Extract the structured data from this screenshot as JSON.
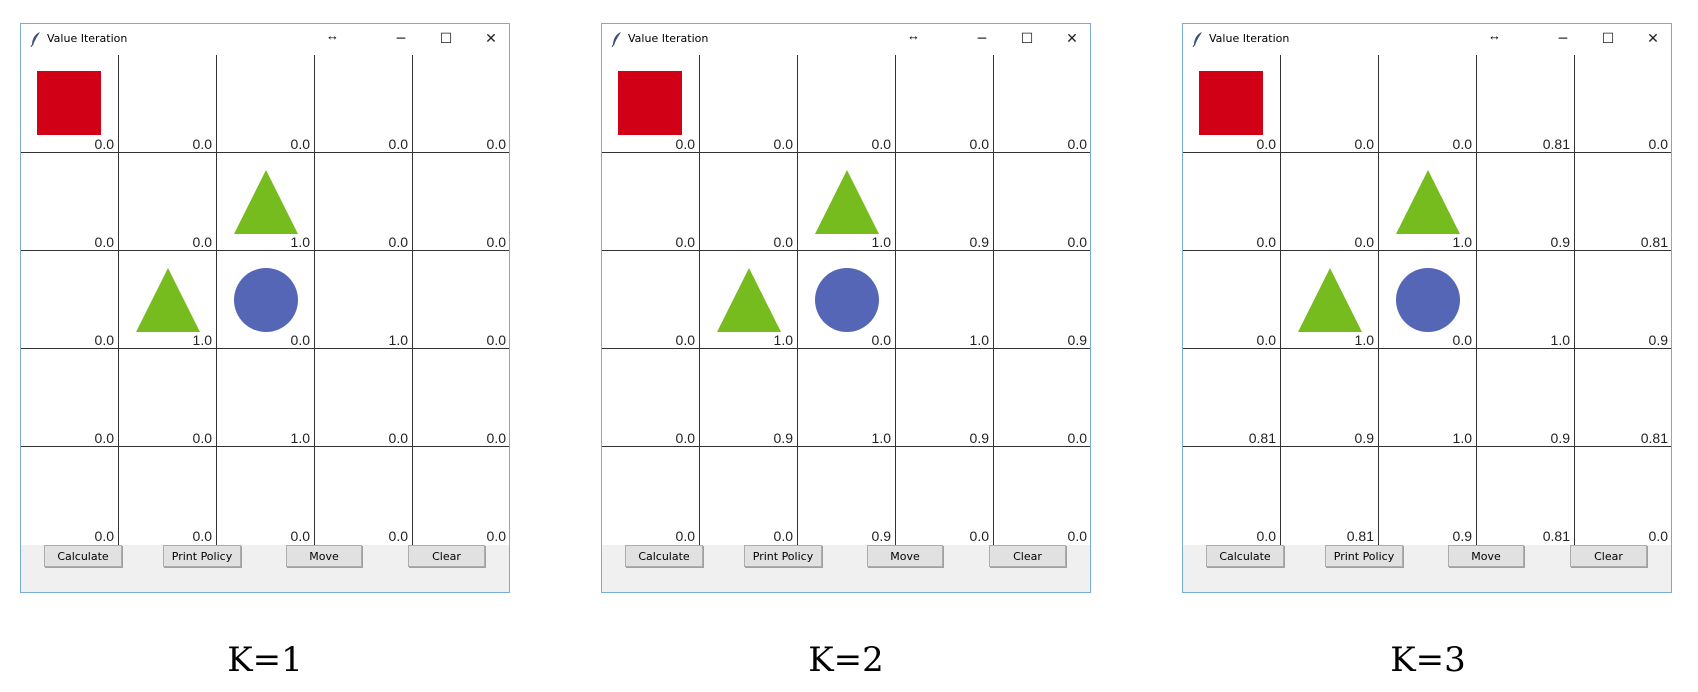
{
  "window_title": "Value Iteration",
  "titlebar_icons": {
    "app": "feather-icon",
    "resize": "↔",
    "minimize": "─",
    "maximize": "☐",
    "close": "✕"
  },
  "buttons": {
    "calculate": "Calculate",
    "print_policy": "Print Policy",
    "move": "Move",
    "clear": "Clear"
  },
  "colors": {
    "rectangle": "#d20016",
    "triangle": "#77bc1f",
    "circle": "#5566b7"
  },
  "panels": [
    {
      "caption": "K=1",
      "values": [
        [
          "0.0",
          "0.0",
          "0.0",
          "0.0",
          "0.0"
        ],
        [
          "0.0",
          "0.0",
          "1.0",
          "0.0",
          "0.0"
        ],
        [
          "0.0",
          "1.0",
          "0.0",
          "1.0",
          "0.0"
        ],
        [
          "0.0",
          "0.0",
          "1.0",
          "0.0",
          "0.0"
        ],
        [
          "0.0",
          "0.0",
          "0.0",
          "0.0",
          "0.0"
        ]
      ]
    },
    {
      "caption": "K=2",
      "values": [
        [
          "0.0",
          "0.0",
          "0.0",
          "0.0",
          "0.0"
        ],
        [
          "0.0",
          "0.0",
          "1.0",
          "0.9",
          "0.0"
        ],
        [
          "0.0",
          "1.0",
          "0.0",
          "1.0",
          "0.9"
        ],
        [
          "0.0",
          "0.9",
          "1.0",
          "0.9",
          "0.0"
        ],
        [
          "0.0",
          "0.0",
          "0.9",
          "0.0",
          "0.0"
        ]
      ]
    },
    {
      "caption": "K=3",
      "values": [
        [
          "0.0",
          "0.0",
          "0.0",
          "0.81",
          "0.0"
        ],
        [
          "0.0",
          "0.0",
          "1.0",
          "0.9",
          "0.81"
        ],
        [
          "0.0",
          "1.0",
          "0.0",
          "1.0",
          "0.9"
        ],
        [
          "0.81",
          "0.9",
          "1.0",
          "0.9",
          "0.81"
        ],
        [
          "0.0",
          "0.81",
          "0.9",
          "0.81",
          "0.0"
        ]
      ]
    }
  ]
}
